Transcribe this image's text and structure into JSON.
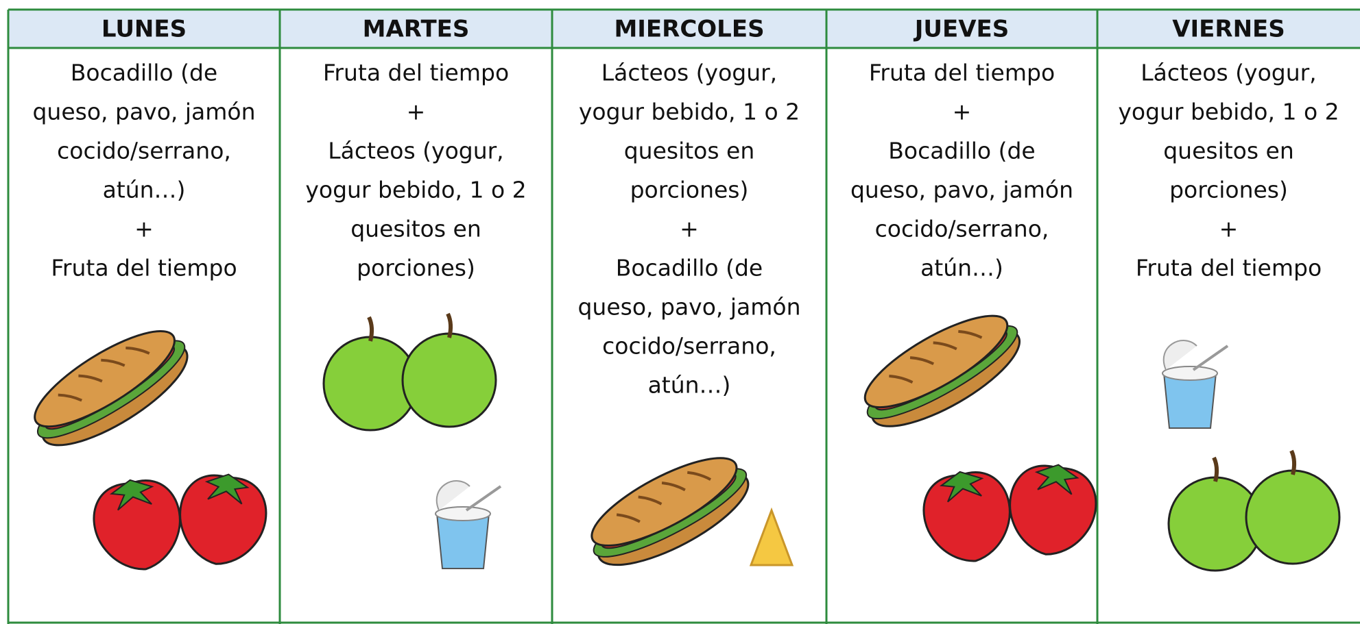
{
  "table": {
    "headers": [
      "LUNES",
      "MARTES",
      "MIERCOLES",
      "JUEVES",
      "VIERNES"
    ],
    "cells": [
      [
        "Bocadillo (de",
        "queso, pavo, jamón",
        "cocido/serrano,",
        "atún…)",
        "+",
        "Fruta del tiempo"
      ],
      [
        "Fruta del tiempo",
        "+",
        "Lácteos (yogur,",
        "yogur bebido, 1 o 2",
        "quesitos en",
        "porciones)"
      ],
      [
        "Lácteos (yogur,",
        "yogur bebido, 1 o 2",
        "quesitos en",
        "porciones)",
        "+",
        "Bocadillo (de",
        "queso, pavo, jamón",
        "cocido/serrano,",
        "atún…)"
      ],
      [
        "Fruta del tiempo",
        "+",
        "Bocadillo (de",
        "queso, pavo, jamón",
        "cocido/serrano,",
        "atún…)"
      ],
      [
        "Lácteos (yogur,",
        "yogur bebido, 1 o 2",
        "quesitos en",
        "porciones)",
        "+",
        "Fruta del tiempo"
      ]
    ]
  }
}
